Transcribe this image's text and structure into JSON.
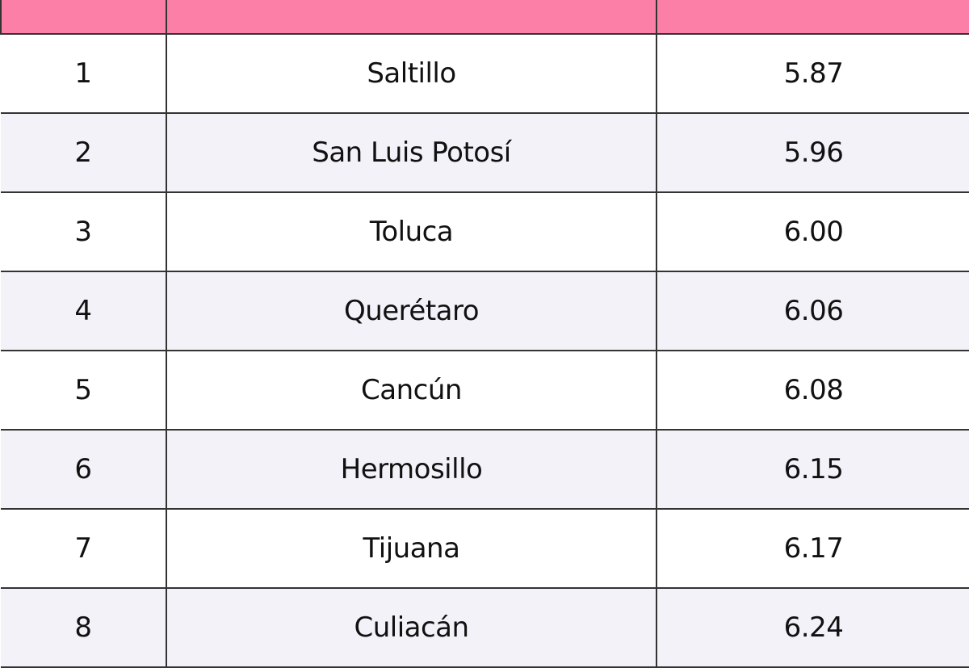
{
  "table": {
    "rows": [
      [
        "1",
        "Saltillo",
        "5.87"
      ],
      [
        "2",
        "San Luis Potosí",
        "5.96"
      ],
      [
        "3",
        "Toluca",
        "6.00"
      ],
      [
        "4",
        "Querétaro",
        "6.06"
      ],
      [
        "5",
        "Cancún",
        "6.08"
      ],
      [
        "6",
        "Hermosillo",
        "6.15"
      ],
      [
        "7",
        "Tijuana",
        "6.17"
      ],
      [
        "8",
        "Culiacán",
        "6.24"
      ]
    ]
  }
}
